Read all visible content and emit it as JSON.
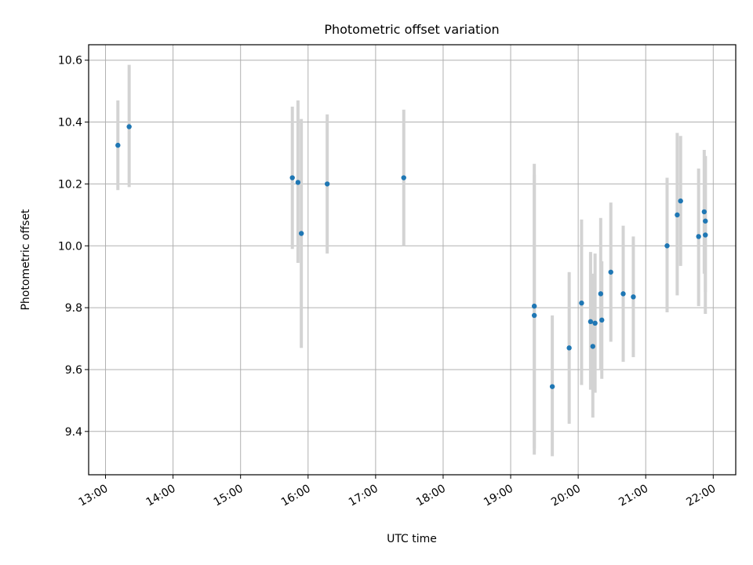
{
  "chart_data": {
    "type": "scatter",
    "title": "Photometric offset variation",
    "xlabel": "UTC time",
    "ylabel": "Photometric offset",
    "xlim": [
      "12:45",
      "22:20"
    ],
    "ylim": [
      9.26,
      10.65
    ],
    "x_ticks": [
      "13:00",
      "14:00",
      "15:00",
      "16:00",
      "17:00",
      "18:00",
      "19:00",
      "20:00",
      "21:00",
      "22:00"
    ],
    "y_ticks": [
      9.4,
      9.6,
      9.8,
      10.0,
      10.2,
      10.4,
      10.6
    ],
    "y_tick_labels": [
      "9.4",
      "9.6",
      "9.8",
      "10.0",
      "10.2",
      "10.4",
      "10.6"
    ],
    "grid": true,
    "marker_color": "#1f77b4",
    "errorbar_color": "#d3d3d3",
    "points": [
      {
        "t": "13:11",
        "y": 10.325,
        "lo": 10.18,
        "hi": 10.47
      },
      {
        "t": "13:21",
        "y": 10.385,
        "lo": 10.19,
        "hi": 10.585
      },
      {
        "t": "15:46",
        "y": 10.22,
        "lo": 9.99,
        "hi": 10.45
      },
      {
        "t": "15:51",
        "y": 10.205,
        "lo": 9.945,
        "hi": 10.47
      },
      {
        "t": "15:54",
        "y": 10.04,
        "lo": 9.67,
        "hi": 10.41
      },
      {
        "t": "16:17",
        "y": 10.2,
        "lo": 9.975,
        "hi": 10.425
      },
      {
        "t": "17:25",
        "y": 10.22,
        "lo": 10.0,
        "hi": 10.44
      },
      {
        "t": "19:21",
        "y": 9.805,
        "lo": 9.345,
        "hi": 10.265
      },
      {
        "t": "19:21",
        "y": 9.775,
        "lo": 9.325,
        "hi": 10.23
      },
      {
        "t": "19:37",
        "y": 9.545,
        "lo": 9.32,
        "hi": 9.775
      },
      {
        "t": "19:52",
        "y": 9.67,
        "lo": 9.425,
        "hi": 9.915
      },
      {
        "t": "20:03",
        "y": 9.815,
        "lo": 9.55,
        "hi": 10.085
      },
      {
        "t": "20:11",
        "y": 9.755,
        "lo": 9.535,
        "hi": 9.98
      },
      {
        "t": "20:13",
        "y": 9.675,
        "lo": 9.445,
        "hi": 9.91
      },
      {
        "t": "20:15",
        "y": 9.75,
        "lo": 9.525,
        "hi": 9.975
      },
      {
        "t": "20:20",
        "y": 9.845,
        "lo": 9.6,
        "hi": 10.09
      },
      {
        "t": "20:21",
        "y": 9.76,
        "lo": 9.57,
        "hi": 9.95
      },
      {
        "t": "20:29",
        "y": 9.915,
        "lo": 9.69,
        "hi": 10.14
      },
      {
        "t": "20:40",
        "y": 9.845,
        "lo": 9.625,
        "hi": 10.065
      },
      {
        "t": "20:49",
        "y": 9.835,
        "lo": 9.64,
        "hi": 10.03
      },
      {
        "t": "21:19",
        "y": 10.0,
        "lo": 9.785,
        "hi": 10.22
      },
      {
        "t": "21:28",
        "y": 10.1,
        "lo": 9.84,
        "hi": 10.365
      },
      {
        "t": "21:31",
        "y": 10.145,
        "lo": 9.935,
        "hi": 10.355
      },
      {
        "t": "21:47",
        "y": 10.03,
        "lo": 9.805,
        "hi": 10.25
      },
      {
        "t": "21:52",
        "y": 10.11,
        "lo": 9.91,
        "hi": 10.31
      },
      {
        "t": "21:53",
        "y": 10.08,
        "lo": 9.85,
        "hi": 10.29
      },
      {
        "t": "21:53",
        "y": 10.035,
        "lo": 9.78,
        "hi": 10.29
      }
    ]
  }
}
